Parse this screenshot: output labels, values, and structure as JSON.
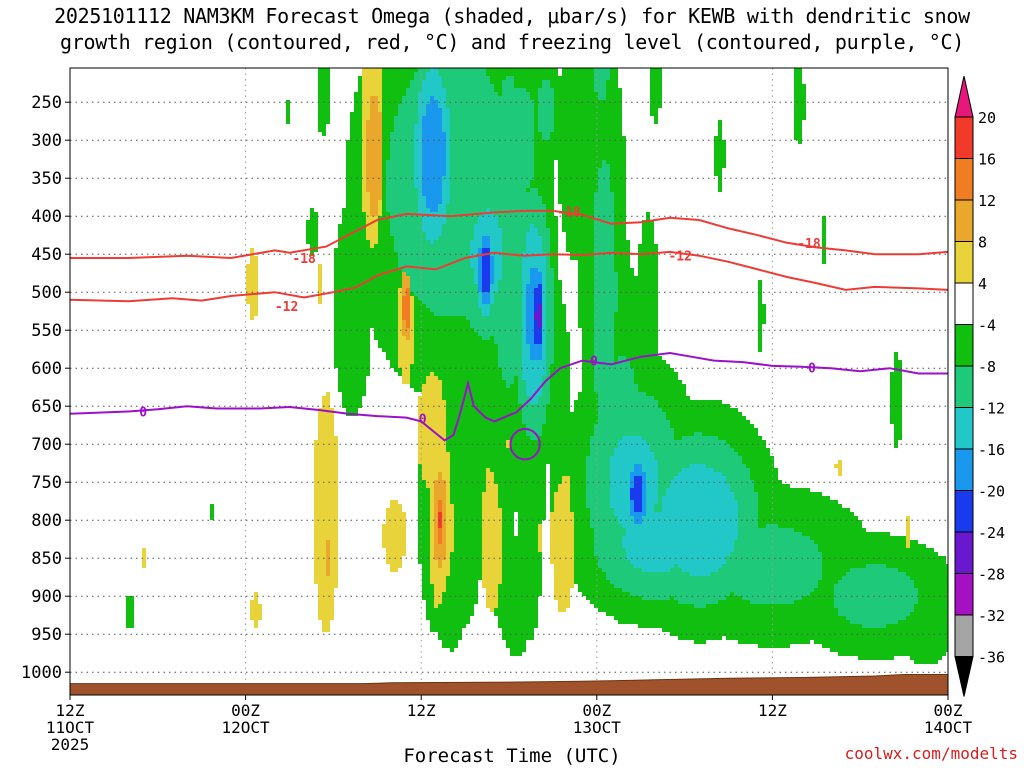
{
  "title_line_1": "2025101112 NAM3KM Forecast Omega (shaded, μbar/s) for KEWB with dendritic snow",
  "title_line_2": "growth region (contoured, red, °C) and freezing level (contoured, purple, °C)",
  "xlabel": "Forecast Time (UTC)",
  "credit": "coolwx.com/modelts",
  "colors": {
    "dgz_contour": "#ee3b35",
    "freezing_contour": "#9a11c9",
    "terrain": "#a0522d",
    "grid": "#555555"
  },
  "chart_data": {
    "type": "heatmap",
    "variable": "Omega",
    "units": "μbar/s",
    "y_axis": {
      "quantity": "pressure (hPa)",
      "direction": "decreasing-upward",
      "ticks": [
        250,
        300,
        350,
        400,
        450,
        500,
        550,
        600,
        650,
        700,
        750,
        800,
        850,
        900,
        950,
        1000
      ],
      "range": [
        1030,
        205
      ]
    },
    "x_axis": {
      "quantity": "forecast hour",
      "range": [
        0,
        60
      ],
      "ticks": [
        {
          "hour": 0,
          "line1": "12Z",
          "line2": "11OCT",
          "line3": "2025"
        },
        {
          "hour": 12,
          "line1": "00Z",
          "line2": "12OCT",
          "line3": ""
        },
        {
          "hour": 24,
          "line1": "12Z",
          "line2": "",
          "line3": ""
        },
        {
          "hour": 36,
          "line1": "00Z",
          "line2": "13OCT",
          "line3": ""
        },
        {
          "hour": 48,
          "line1": "12Z",
          "line2": "",
          "line3": ""
        },
        {
          "hour": 60,
          "line1": "00Z",
          "line2": "14OCT",
          "line3": ""
        }
      ]
    },
    "grid": true,
    "colorbar": {
      "placement": "right",
      "labels": [
        "20",
        "16",
        "12",
        "8",
        "4",
        "-4",
        "-8",
        "-12",
        "-16",
        "-20",
        "-24",
        "-28",
        "-32",
        "-36"
      ],
      "bins": [
        {
          "min": 20,
          "max": 24,
          "color": "#e8177a"
        },
        {
          "min": 16,
          "max": 20,
          "color": "#f23a2a"
        },
        {
          "min": 12,
          "max": 16,
          "color": "#f07d22"
        },
        {
          "min": 8,
          "max": 12,
          "color": "#e9a72c"
        },
        {
          "min": 4,
          "max": 8,
          "color": "#e8d33a"
        },
        {
          "min": -4,
          "max": 4,
          "color": "#ffffff"
        },
        {
          "min": -8,
          "max": -4,
          "color": "#11bf11"
        },
        {
          "min": -12,
          "max": -8,
          "color": "#1fc97a"
        },
        {
          "min": -16,
          "max": -12,
          "color": "#22c8c8"
        },
        {
          "min": -20,
          "max": -16,
          "color": "#1a98ee"
        },
        {
          "min": -24,
          "max": -20,
          "color": "#1a3aee"
        },
        {
          "min": -28,
          "max": -24,
          "color": "#6a18d0"
        },
        {
          "min": -32,
          "max": -28,
          "color": "#a311c2"
        },
        {
          "min": -36,
          "max": -32,
          "color": "#a5a5a5"
        },
        {
          "min": -40,
          "max": -36,
          "color": "#000000"
        }
      ]
    },
    "omega_features": [
      {
        "hour": 20.8,
        "p": 320,
        "value": 10,
        "dh": 0.9,
        "dp": 140
      },
      {
        "hour": 20.8,
        "p": 230,
        "value": 6,
        "dh": 0.6,
        "dp": 60
      },
      {
        "hour": 26.0,
        "p": 360,
        "value": -12,
        "dh": 5.5,
        "dp": 220
      },
      {
        "hour": 24.8,
        "p": 320,
        "value": -20,
        "dh": 1.4,
        "dp": 130
      },
      {
        "hour": 25.0,
        "p": 250,
        "value": -12,
        "dh": 1.6,
        "dp": 60
      },
      {
        "hour": 27.5,
        "p": 250,
        "value": -10,
        "dh": 2.3,
        "dp": 90
      },
      {
        "hour": 28.5,
        "p": 450,
        "value": -14,
        "dh": 2.2,
        "dp": 120
      },
      {
        "hour": 28.4,
        "p": 470,
        "value": -24,
        "dh": 0.6,
        "dp": 60
      },
      {
        "hour": 30.0,
        "p": 420,
        "value": -12,
        "dh": 1.6,
        "dp": 260
      },
      {
        "hour": 31.0,
        "p": 300,
        "value": -10,
        "dh": 1.4,
        "dp": 120
      },
      {
        "hour": 32.5,
        "p": 260,
        "value": -10,
        "dh": 1.0,
        "dp": 70
      },
      {
        "hour": 31.7,
        "p": 530,
        "value": -18,
        "dh": 1.2,
        "dp": 150
      },
      {
        "hour": 32.0,
        "p": 530,
        "value": -26,
        "dh": 0.45,
        "dp": 70
      },
      {
        "hour": 34.5,
        "p": 300,
        "value": -6,
        "dh": 1.5,
        "dp": 200
      },
      {
        "hour": 36.3,
        "p": 180,
        "value": -10,
        "dh": 1.0,
        "dp": 120
      },
      {
        "hour": 36.5,
        "p": 500,
        "value": -10,
        "dh": 1.4,
        "dp": 300
      },
      {
        "hour": 38.5,
        "p": 750,
        "value": -14,
        "dh": 3.5,
        "dp": 130
      },
      {
        "hour": 43.0,
        "p": 800,
        "value": -16,
        "dh": 4.0,
        "dp": 110
      },
      {
        "hour": 38.8,
        "p": 765,
        "value": -24,
        "dh": 0.8,
        "dp": 50
      },
      {
        "hour": 48.0,
        "p": 860,
        "value": -10,
        "dh": 6.0,
        "dp": 90
      },
      {
        "hour": 55.0,
        "p": 900,
        "value": -10,
        "dh": 5.0,
        "dp": 70
      },
      {
        "hour": 58.5,
        "p": 930,
        "value": -8,
        "dh": 2.0,
        "dp": 60
      },
      {
        "hour": 40.0,
        "p": 830,
        "value": -14,
        "dh": 4.5,
        "dp": 80
      },
      {
        "hour": 25.0,
        "p": 760,
        "value": -6,
        "dh": 1.6,
        "dp": 240
      },
      {
        "hour": 27.0,
        "p": 700,
        "value": -6,
        "dh": 2.0,
        "dp": 300
      },
      {
        "hour": 29.5,
        "p": 720,
        "value": -6,
        "dh": 1.3,
        "dp": 280
      },
      {
        "hour": 31.5,
        "p": 720,
        "value": -6,
        "dh": 1.2,
        "dp": 300
      },
      {
        "hour": 33.5,
        "p": 680,
        "value": -6,
        "dh": 1.0,
        "dp": 220
      },
      {
        "hour": 37.8,
        "p": 700,
        "value": -10,
        "dh": 2.0,
        "dp": 200
      },
      {
        "hour": 19.3,
        "p": 520,
        "value": -8,
        "dh": 1.3,
        "dp": 140
      },
      {
        "hour": 39.5,
        "p": 520,
        "value": -8,
        "dh": 0.7,
        "dp": 120
      },
      {
        "hour": 16.6,
        "p": 420,
        "value": -6,
        "dh": 0.5,
        "dp": 40
      },
      {
        "hour": 14.8,
        "p": 265,
        "value": -6,
        "dh": 0.2,
        "dp": 25
      },
      {
        "hour": 17.3,
        "p": 240,
        "value": -6,
        "dh": 0.6,
        "dp": 70
      },
      {
        "hour": 40.0,
        "p": 230,
        "value": -6,
        "dh": 0.5,
        "dp": 60
      },
      {
        "hour": 44.4,
        "p": 320,
        "value": -6,
        "dh": 0.4,
        "dp": 60
      },
      {
        "hour": 49.8,
        "p": 250,
        "value": -6,
        "dh": 0.5,
        "dp": 70
      },
      {
        "hour": 51.5,
        "p": 430,
        "value": -6,
        "dh": 0.2,
        "dp": 40
      },
      {
        "hour": 47.2,
        "p": 530,
        "value": -6,
        "dh": 0.3,
        "dp": 60
      },
      {
        "hour": 56.5,
        "p": 640,
        "value": -6,
        "dh": 0.5,
        "dp": 80
      },
      {
        "hour": 4.1,
        "p": 920,
        "value": -6,
        "dh": 0.4,
        "dp": 30
      },
      {
        "hour": 9.7,
        "p": 790,
        "value": -6,
        "dh": 0.2,
        "dp": 15
      },
      {
        "hour": 26.0,
        "p": 900,
        "value": -6,
        "dh": 1.5,
        "dp": 90
      },
      {
        "hour": 30.5,
        "p": 900,
        "value": -6,
        "dh": 1.5,
        "dp": 100
      },
      {
        "hour": 17.5,
        "p": 790,
        "value": 6,
        "dh": 1.1,
        "dp": 200
      },
      {
        "hour": 17.7,
        "p": 850,
        "value": 9,
        "dh": 0.4,
        "dp": 60
      },
      {
        "hour": 23.0,
        "p": 510,
        "value": 9,
        "dh": 0.8,
        "dp": 100
      },
      {
        "hour": 23.0,
        "p": 520,
        "value": 17,
        "dh": 0.3,
        "dp": 40
      },
      {
        "hour": 24.8,
        "p": 690,
        "value": 8,
        "dh": 1.0,
        "dp": 100
      },
      {
        "hour": 25.3,
        "p": 800,
        "value": 10,
        "dh": 0.8,
        "dp": 110
      },
      {
        "hour": 25.3,
        "p": 800,
        "value": 17,
        "dh": 0.3,
        "dp": 40
      },
      {
        "hour": 28.9,
        "p": 820,
        "value": 8,
        "dh": 0.8,
        "dp": 100
      },
      {
        "hour": 33.7,
        "p": 820,
        "value": 8,
        "dh": 0.8,
        "dp": 100
      },
      {
        "hour": 36.1,
        "p": 800,
        "value": 8,
        "dh": 0.5,
        "dp": 60
      },
      {
        "hour": 22.2,
        "p": 820,
        "value": 6,
        "dh": 1.0,
        "dp": 60
      },
      {
        "hour": 23.5,
        "p": 480,
        "value": 6,
        "dh": 0.4,
        "dp": 40
      },
      {
        "hour": 20.8,
        "p": 420,
        "value": 6,
        "dh": 0.3,
        "dp": 30
      },
      {
        "hour": 17.0,
        "p": 490,
        "value": 6,
        "dh": 0.2,
        "dp": 40
      },
      {
        "hour": 12.5,
        "p": 490,
        "value": 6,
        "dh": 0.5,
        "dp": 60
      },
      {
        "hour": 21.5,
        "p": 470,
        "value": 6,
        "dh": 0.3,
        "dp": 40
      },
      {
        "hour": 5.0,
        "p": 850,
        "value": 6,
        "dh": 0.2,
        "dp": 20
      },
      {
        "hour": 12.7,
        "p": 920,
        "value": 6,
        "dh": 0.4,
        "dp": 30
      },
      {
        "hour": 30.0,
        "p": 690,
        "value": 6,
        "dh": 0.4,
        "dp": 50
      },
      {
        "hour": 32.0,
        "p": 820,
        "value": 6,
        "dh": 0.3,
        "dp": 40
      },
      {
        "hour": 42.3,
        "p": 780,
        "value": 6,
        "dh": 0.2,
        "dp": 20
      },
      {
        "hour": 57.3,
        "p": 820,
        "value": 6,
        "dh": 0.3,
        "dp": 30
      },
      {
        "hour": 52.5,
        "p": 730,
        "value": 6,
        "dh": 0.2,
        "dp": 20
      },
      {
        "hour": 40.3,
        "p": 860,
        "value": 6,
        "dh": 0.3,
        "dp": 30
      }
    ],
    "contours": [
      {
        "label": "-18",
        "color": "#ee3b35",
        "points": [
          [
            0,
            455
          ],
          [
            4,
            455
          ],
          [
            8,
            452
          ],
          [
            11,
            455
          ],
          [
            14,
            445
          ],
          [
            15,
            448
          ],
          [
            17.5,
            440
          ],
          [
            19.5,
            420
          ],
          [
            21,
            405
          ],
          [
            23,
            397
          ],
          [
            26,
            400
          ],
          [
            29,
            395
          ],
          [
            31,
            393
          ],
          [
            33,
            393
          ],
          [
            35,
            398
          ],
          [
            37,
            410
          ],
          [
            39,
            408
          ],
          [
            41,
            402
          ],
          [
            43,
            405
          ],
          [
            45,
            416
          ],
          [
            47,
            425
          ],
          [
            49,
            435
          ],
          [
            51,
            441
          ],
          [
            53,
            445
          ],
          [
            55,
            450
          ],
          [
            58,
            450
          ],
          [
            60,
            447
          ]
        ],
        "label_positions": [
          [
            16,
            455
          ],
          [
            34.1,
            394
          ],
          [
            50.5,
            435
          ]
        ]
      },
      {
        "label": "-12",
        "color": "#ee3b35",
        "points": [
          [
            0,
            510
          ],
          [
            4,
            512
          ],
          [
            7,
            508
          ],
          [
            9,
            511
          ],
          [
            11,
            505
          ],
          [
            14,
            500
          ],
          [
            16,
            507
          ],
          [
            18,
            500
          ],
          [
            19.5,
            494
          ],
          [
            21,
            478
          ],
          [
            23,
            466
          ],
          [
            25,
            470
          ],
          [
            27,
            455
          ],
          [
            29,
            448
          ],
          [
            31,
            452
          ],
          [
            33,
            450
          ],
          [
            35,
            451
          ],
          [
            37,
            448
          ],
          [
            39,
            450
          ],
          [
            41,
            447
          ],
          [
            43,
            452
          ],
          [
            45,
            460
          ],
          [
            47,
            470
          ],
          [
            49,
            480
          ],
          [
            51,
            488
          ],
          [
            53,
            497
          ],
          [
            55,
            493
          ],
          [
            58,
            495
          ],
          [
            60,
            497
          ]
        ],
        "label_positions": [
          [
            14.8,
            518
          ],
          [
            41.7,
            452
          ]
        ]
      },
      {
        "label": "0",
        "color": "#9a11c9",
        "points": [
          [
            0,
            660
          ],
          [
            4,
            657
          ],
          [
            6,
            654
          ],
          [
            8,
            650
          ],
          [
            10,
            653
          ],
          [
            13,
            653
          ],
          [
            15,
            651
          ],
          [
            17,
            655
          ],
          [
            19,
            660
          ],
          [
            21,
            663
          ],
          [
            23,
            665
          ],
          [
            24,
            670
          ],
          [
            25.6,
            695
          ],
          [
            26.2,
            688
          ],
          [
            26.6,
            664
          ],
          [
            27.2,
            620
          ],
          [
            27.6,
            650
          ],
          [
            28.4,
            665
          ],
          [
            29,
            670
          ],
          [
            30.5,
            658
          ],
          [
            31.5,
            640
          ],
          [
            32.5,
            617
          ],
          [
            33.5,
            600
          ],
          [
            35,
            590
          ],
          [
            37,
            595
          ],
          [
            39,
            585
          ],
          [
            41,
            580
          ],
          [
            42.5,
            585
          ],
          [
            44,
            590
          ],
          [
            46,
            592
          ],
          [
            48,
            597
          ],
          [
            50,
            598
          ],
          [
            52,
            600
          ],
          [
            54,
            604
          ],
          [
            56,
            600
          ],
          [
            58,
            607
          ],
          [
            60,
            607
          ]
        ],
        "label_positions": [
          [
            5,
            657
          ],
          [
            24.1,
            666
          ],
          [
            35.8,
            590
          ],
          [
            50.7,
            599
          ]
        ]
      }
    ],
    "freezing_closed_contour": {
      "label": "0",
      "center": [
        31.1,
        700
      ],
      "dh": 1.0,
      "dp": 20
    },
    "terrain": {
      "label": "surface",
      "points": [
        [
          0,
          1015
        ],
        [
          20,
          1015
        ],
        [
          22,
          1014
        ],
        [
          30,
          1013
        ],
        [
          35,
          1012
        ],
        [
          40,
          1010
        ],
        [
          45,
          1008
        ],
        [
          50,
          1007
        ],
        [
          55,
          1005
        ],
        [
          57,
          1003
        ],
        [
          60,
          1003
        ]
      ]
    }
  }
}
